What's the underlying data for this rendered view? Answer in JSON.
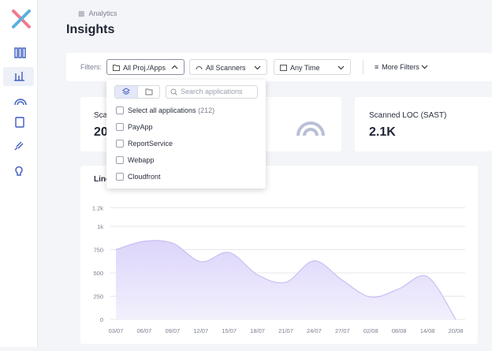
{
  "breadcrumb": "Analytics",
  "title": "Insights",
  "filters": {
    "label": "Filters:",
    "buttons": [
      "All Proj./Apps",
      "All Scanners",
      "Any Time",
      "More Filters"
    ]
  },
  "dropdown": {
    "search_placeholder": "Search applications",
    "select_all": "Select all applications",
    "select_all_count": "(212)",
    "items": [
      "PayApp",
      "ReportService",
      "Webapp",
      "Cloudfront"
    ]
  },
  "cards": [
    {
      "label": "Sca",
      "value": "20"
    },
    {
      "label": "Scanned LOC (SAST)",
      "value": "2.1K"
    }
  ],
  "chart_data": {
    "type": "area",
    "title": "Line",
    "categories": [
      "03/07",
      "06/07",
      "09/07",
      "12/07",
      "15/07",
      "18/07",
      "21/07",
      "24/07",
      "27/07",
      "02/08",
      "08/08",
      "14/08",
      "20/08"
    ],
    "values": [
      750,
      840,
      820,
      620,
      720,
      480,
      400,
      630,
      420,
      240,
      330,
      460,
      0
    ],
    "color": "#c9bff2",
    "ylim": [
      0,
      1200
    ],
    "yticks": [
      0,
      250,
      500,
      750,
      {
        "value": 1000,
        "label": "1k"
      },
      {
        "value": 1200,
        "label": "1.2k"
      }
    ],
    "grid": true
  }
}
